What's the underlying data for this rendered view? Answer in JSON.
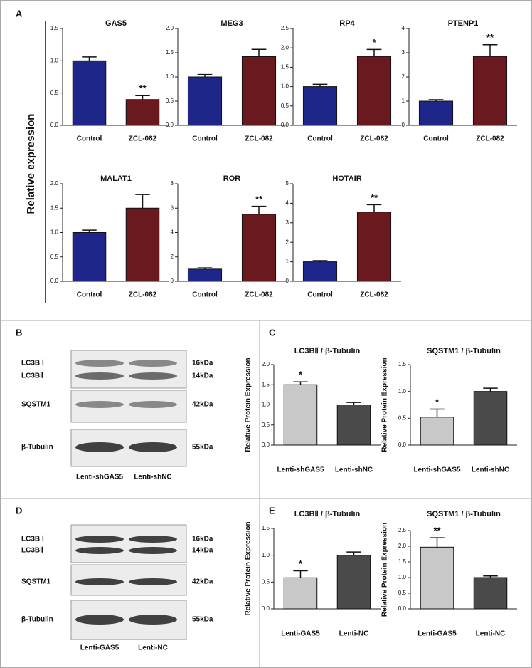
{
  "panel_labels": [
    "A",
    "B",
    "C",
    "D",
    "E"
  ],
  "shared_ylabel": "Relative expression",
  "chart_data": [
    {
      "type": "bar",
      "title": "GAS5",
      "categories": [
        "Control",
        "ZCL-082"
      ],
      "values": [
        1.0,
        0.4
      ],
      "errors": [
        0.06,
        0.06
      ],
      "colors": [
        "#1f268a",
        "#6a1a1e"
      ],
      "significance": [
        null,
        "**"
      ],
      "ylim": [
        0,
        1.5
      ],
      "yticks": [
        {
          "value": 0,
          "label": "0.0"
        },
        0.5,
        {
          "value": 1,
          "label": "1.0"
        },
        1.5
      ]
    },
    {
      "type": "bar",
      "title": "MEG3",
      "categories": [
        "Control",
        "ZCL-082"
      ],
      "values": [
        1.0,
        1.42
      ],
      "errors": [
        0.05,
        0.15
      ],
      "colors": [
        "#1f268a",
        "#6a1a1e"
      ],
      "significance": [
        null,
        null
      ],
      "ylim": [
        0,
        2
      ],
      "yticks": [
        {
          "value": 0,
          "label": "0.0"
        },
        0.5,
        {
          "value": 1,
          "label": "1.0"
        },
        1.5,
        {
          "value": 2,
          "label": "2.0"
        }
      ]
    },
    {
      "type": "bar",
      "title": "RP4",
      "categories": [
        "Control",
        "ZCL-082"
      ],
      "values": [
        1.0,
        1.78
      ],
      "errors": [
        0.06,
        0.18
      ],
      "colors": [
        "#1f268a",
        "#6a1a1e"
      ],
      "significance": [
        null,
        "*"
      ],
      "ylim": [
        0,
        2.5
      ],
      "yticks": [
        {
          "value": 0,
          "label": "0.0"
        },
        0.5,
        {
          "value": 1,
          "label": "1.0"
        },
        1.5,
        {
          "value": 2,
          "label": "2.0"
        },
        2.5
      ]
    },
    {
      "type": "bar",
      "title": "PTENP1",
      "categories": [
        "Control",
        "ZCL-082"
      ],
      "values": [
        1.0,
        2.85
      ],
      "errors": [
        0.06,
        0.48
      ],
      "colors": [
        "#1f268a",
        "#6a1a1e"
      ],
      "significance": [
        null,
        "**"
      ],
      "ylim": [
        0,
        4
      ],
      "yticks": [
        0,
        1,
        2,
        3,
        4
      ]
    },
    {
      "type": "bar",
      "title": "MALAT1",
      "categories": [
        "Control",
        "ZCL-082"
      ],
      "values": [
        1.0,
        1.5
      ],
      "errors": [
        0.05,
        0.28
      ],
      "colors": [
        "#1f268a",
        "#6a1a1e"
      ],
      "significance": [
        null,
        null
      ],
      "ylim": [
        0,
        2
      ],
      "yticks": [
        {
          "value": 0,
          "label": "0.0"
        },
        0.5,
        {
          "value": 1,
          "label": "1.0"
        },
        1.5,
        {
          "value": 2,
          "label": "2.0"
        }
      ]
    },
    {
      "type": "bar",
      "title": "ROR",
      "categories": [
        "Control",
        "ZCL-082"
      ],
      "values": [
        1.0,
        5.5
      ],
      "errors": [
        0.1,
        0.65
      ],
      "colors": [
        "#1f268a",
        "#6a1a1e"
      ],
      "significance": [
        null,
        "**"
      ],
      "ylim": [
        0,
        8
      ],
      "yticks": [
        0,
        2,
        4,
        6,
        8
      ]
    },
    {
      "type": "bar",
      "title": "HOTAIR",
      "categories": [
        "Control",
        "ZCL-082"
      ],
      "values": [
        1.0,
        3.55
      ],
      "errors": [
        0.06,
        0.38
      ],
      "colors": [
        "#1f268a",
        "#6a1a1e"
      ],
      "significance": [
        null,
        "**"
      ],
      "ylim": [
        0,
        5
      ],
      "yticks": [
        0,
        1,
        2,
        3,
        4,
        5
      ]
    },
    {
      "type": "bar",
      "title": "LC3BⅡ / β-Tubulin",
      "ylabel": "Relative Protein Expression",
      "categories": [
        "Lenti-shGAS5",
        "Lenti-shNC"
      ],
      "values": [
        1.5,
        1.0
      ],
      "errors": [
        0.07,
        0.06
      ],
      "colors": [
        "#c8c8c8",
        "#4a4a4a"
      ],
      "significance": [
        "*",
        null
      ],
      "ylim": [
        0,
        2
      ],
      "yticks": [
        {
          "value": 0,
          "label": "0.0"
        },
        0.5,
        {
          "value": 1,
          "label": "1.0"
        },
        1.5,
        {
          "value": 2,
          "label": "2.0"
        }
      ]
    },
    {
      "type": "bar",
      "title": "SQSTM1 / β-Tubulin",
      "ylabel": "Relative Protein Expression",
      "categories": [
        "Lenti-shGAS5",
        "Lenti-shNC"
      ],
      "values": [
        0.52,
        1.0
      ],
      "errors": [
        0.15,
        0.06
      ],
      "colors": [
        "#c8c8c8",
        "#4a4a4a"
      ],
      "significance": [
        "*",
        null
      ],
      "ylim": [
        0,
        1.5
      ],
      "yticks": [
        {
          "value": 0,
          "label": "0.0"
        },
        0.5,
        {
          "value": 1,
          "label": "1.0"
        },
        1.5
      ]
    },
    {
      "type": "bar",
      "title": "LC3BⅡ / β-Tubulin",
      "ylabel": "Relative Protein Expression",
      "categories": [
        "Lenti-GAS5",
        "Lenti-NC"
      ],
      "values": [
        0.58,
        1.0
      ],
      "errors": [
        0.13,
        0.06
      ],
      "colors": [
        "#c8c8c8",
        "#4a4a4a"
      ],
      "significance": [
        "*",
        null
      ],
      "ylim": [
        0,
        1.5
      ],
      "yticks": [
        {
          "value": 0,
          "label": "0.0"
        },
        0.5,
        {
          "value": 1,
          "label": "1.0"
        },
        1.5
      ]
    },
    {
      "type": "bar",
      "title": "SQSTM1 / β-Tubulin",
      "ylabel": "Relative Protein Expression",
      "categories": [
        "Lenti-GAS5",
        "Lenti-NC"
      ],
      "values": [
        1.97,
        1.0
      ],
      "errors": [
        0.3,
        0.05
      ],
      "colors": [
        "#c8c8c8",
        "#4a4a4a"
      ],
      "significance": [
        "**",
        null
      ],
      "ylim": [
        0,
        2.5
      ],
      "yticks": [
        {
          "value": 0,
          "label": "0.0"
        },
        0.5,
        {
          "value": 1,
          "label": "1.0"
        },
        1.5,
        {
          "value": 2,
          "label": "2.0"
        },
        2.5
      ]
    }
  ],
  "blots": [
    {
      "rows": [
        {
          "names": [
            "LC3B Ⅰ",
            "LC3BⅡ"
          ],
          "sizes": [
            "16kDa",
            "14kDa"
          ]
        },
        {
          "names": [
            "SQSTM1"
          ],
          "sizes": [
            "42kDa"
          ]
        },
        {
          "names": [
            "β-Tubulin"
          ],
          "sizes": [
            "55kDa"
          ]
        }
      ],
      "lanes": [
        "Lenti-shGAS5",
        "Lenti-shNC"
      ]
    },
    {
      "rows": [
        {
          "names": [
            "LC3B Ⅰ",
            "LC3BⅡ"
          ],
          "sizes": [
            "16kDa",
            "14kDa"
          ]
        },
        {
          "names": [
            "SQSTM1"
          ],
          "sizes": [
            "42kDa"
          ]
        },
        {
          "names": [
            "β-Tubulin"
          ],
          "sizes": [
            "55kDa"
          ]
        }
      ],
      "lanes": [
        "Lenti-GAS5",
        "Lenti-NC"
      ]
    }
  ]
}
